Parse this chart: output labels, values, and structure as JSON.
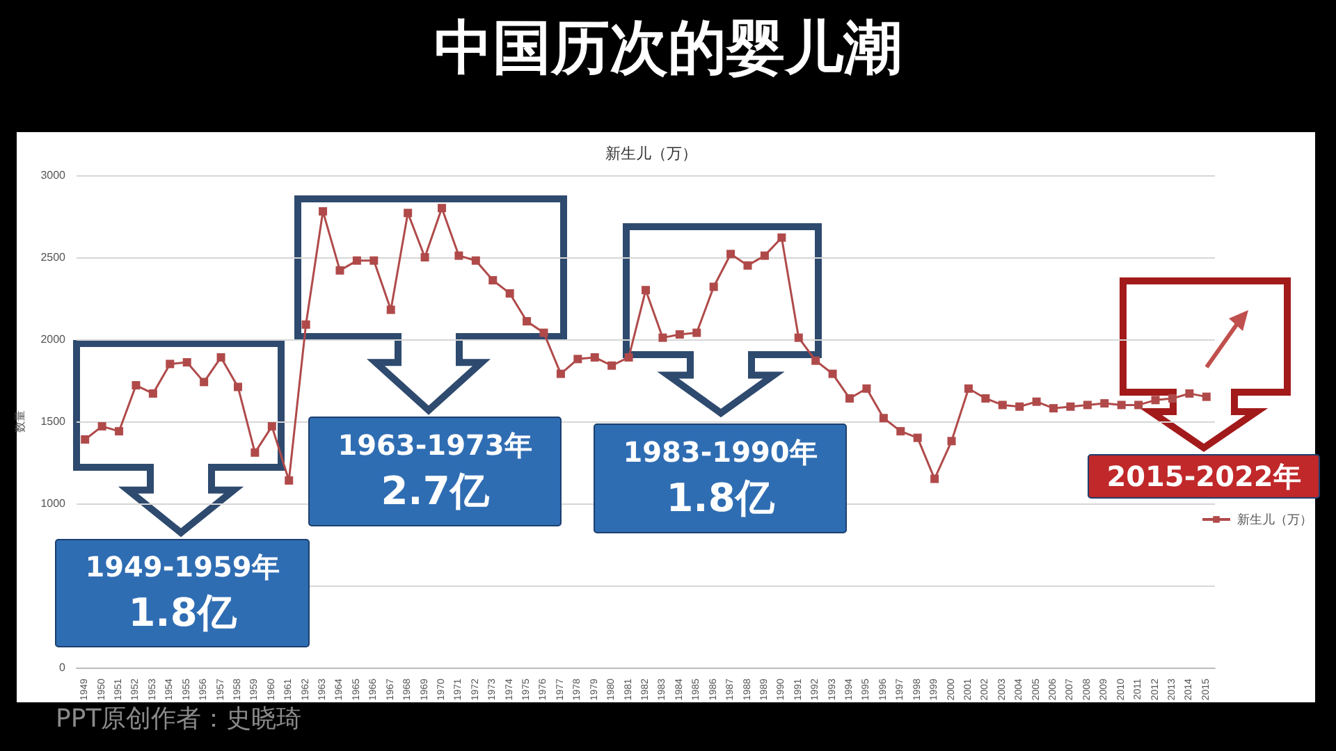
{
  "chart_data": {
    "type": "line",
    "title": "中国历次的婴儿潮",
    "subtitle": "新生儿（万）",
    "ylabel": "数量",
    "categories": [
      "1949",
      "1950",
      "1951",
      "1952",
      "1953",
      "1954",
      "1955",
      "1956",
      "1957",
      "1958",
      "1959",
      "1960",
      "1961",
      "1962",
      "1963",
      "1964",
      "1965",
      "1966",
      "1967",
      "1968",
      "1969",
      "1970",
      "1971",
      "1972",
      "1973",
      "1974",
      "1975",
      "1976",
      "1977",
      "1978",
      "1979",
      "1980",
      "1981",
      "1982",
      "1983",
      "1984",
      "1985",
      "1986",
      "1987",
      "1988",
      "1989",
      "1990",
      "1991",
      "1992",
      "1993",
      "1994",
      "1995",
      "1996",
      "1997",
      "1998",
      "1999",
      "2000",
      "2001",
      "2002",
      "2003",
      "2004",
      "2005",
      "2006",
      "2007",
      "2008",
      "2009",
      "2010",
      "2011",
      "2012",
      "2013",
      "2014",
      "2015"
    ],
    "series": [
      {
        "name": "新生儿（万）",
        "color": "#b04a4a",
        "values": [
          1390,
          1470,
          1440,
          1720,
          1670,
          1850,
          1860,
          1740,
          1890,
          1710,
          1310,
          1470,
          1140,
          2090,
          2780,
          2420,
          2480,
          2480,
          2180,
          2770,
          2500,
          2800,
          2510,
          2480,
          2360,
          2280,
          2110,
          2040,
          1790,
          1880,
          1890,
          1840,
          1890,
          2300,
          2010,
          2030,
          2040,
          2320,
          2520,
          2450,
          2510,
          2620,
          2010,
          1870,
          1790,
          1640,
          1700,
          1520,
          1440,
          1400,
          1150,
          1380,
          1700,
          1640,
          1600,
          1590,
          1620,
          1580,
          1590,
          1600,
          1610,
          1600,
          1600,
          1630,
          1640,
          1670,
          1650
        ]
      }
    ],
    "ylim": [
      0,
      3000
    ],
    "yticks": [
      0,
      {
        "value": 500,
        "label": null
      },
      1000,
      1500,
      2000,
      2500,
      3000
    ],
    "grid": "y",
    "marker": "square",
    "line_style": "solid",
    "legend": "right",
    "annotations": [
      "1949-1959年\n1.8亿",
      "1963-1973年\n2.7亿",
      "1983-1990年\n1.8亿",
      "2015-2022年",
      "PPT原创作者：史晓琦"
    ]
  }
}
